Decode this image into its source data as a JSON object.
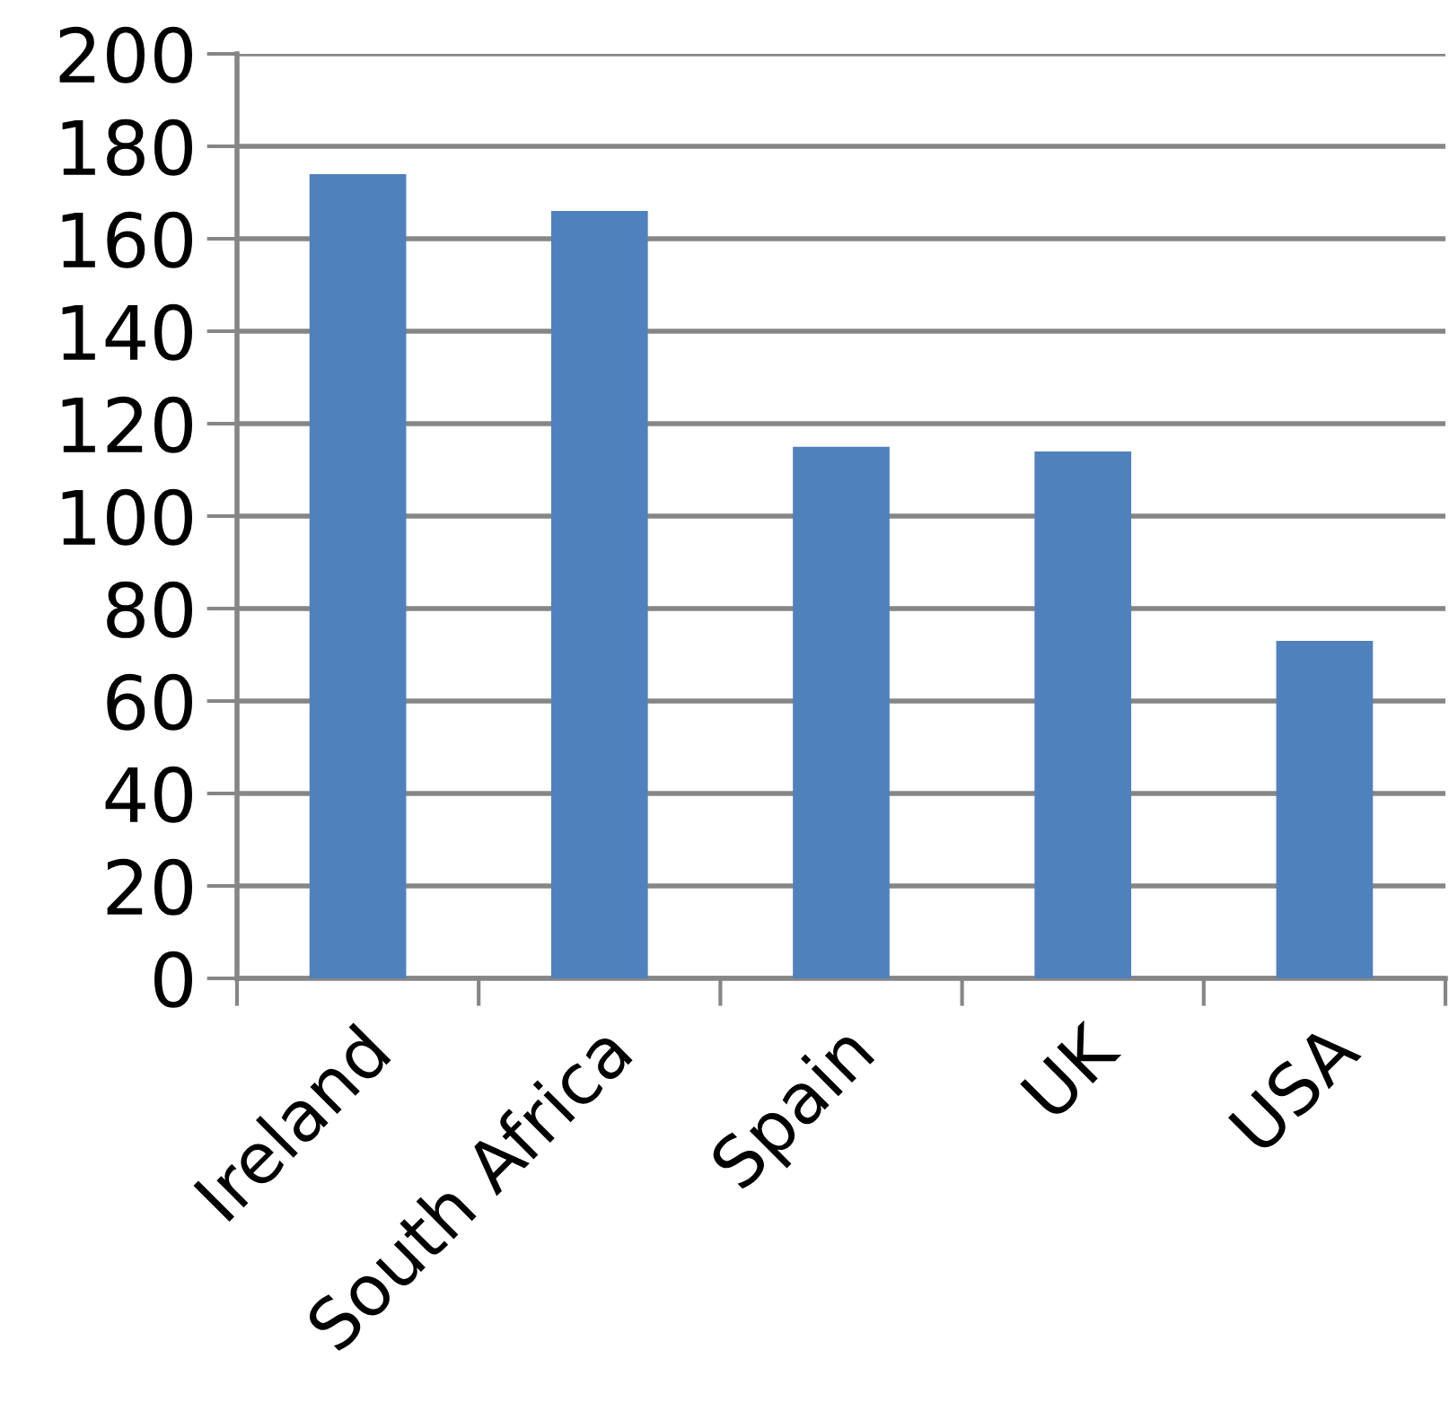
{
  "chart_data": {
    "type": "bar",
    "categories": [
      "Ireland",
      "South Africa",
      "Spain",
      "UK",
      "USA"
    ],
    "values": [
      174,
      166,
      115,
      114,
      73
    ],
    "color": "#4f81bd",
    "ylim": [
      0,
      200
    ],
    "yticks": [
      0,
      20,
      40,
      60,
      80,
      100,
      120,
      140,
      160,
      180,
      200
    ],
    "grid": "y",
    "legend": false
  }
}
